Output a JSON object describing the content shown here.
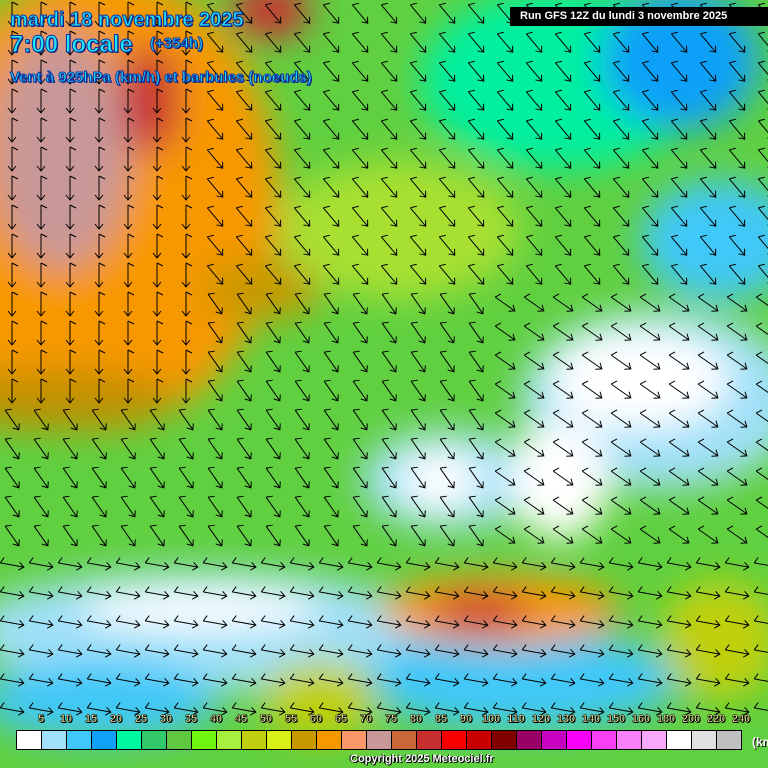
{
  "header": {
    "date": "mardi 18 novembre 2025",
    "time": "7:00 locale",
    "lead": "(+354h)",
    "field": "Vent à 925hPa (km/h) et barbules (noeuds)",
    "run": "Run GFS 12Z du lundi 3 novembre 2025"
  },
  "legend": {
    "labels": [
      "5",
      "10",
      "15",
      "20",
      "25",
      "30",
      "35",
      "40",
      "45",
      "50",
      "55",
      "60",
      "65",
      "70",
      "75",
      "80",
      "85",
      "90",
      "100",
      "110",
      "120",
      "130",
      "140",
      "150",
      "160",
      "180",
      "200",
      "220",
      "240"
    ],
    "colors": [
      "#ffffff",
      "#a0e0f8",
      "#40c8f8",
      "#10a0f8",
      "#00f8a0",
      "#30c868",
      "#60c840",
      "#70f810",
      "#a8f040",
      "#c0d010",
      "#d8f018",
      "#c89800",
      "#f89800",
      "#f89868",
      "#c89898",
      "#c86838",
      "#c83030",
      "#f80000",
      "#c80000",
      "#800000",
      "#980068",
      "#c800c0",
      "#f800f8",
      "#f840f8",
      "#f880f8",
      "#f8a8f8",
      "#ffffff",
      "#e0e0e0",
      "#c0c0c0"
    ],
    "unit": "(km"
  },
  "footer": {
    "copyright": "Copyright 2025 Meteociel.fr"
  }
}
